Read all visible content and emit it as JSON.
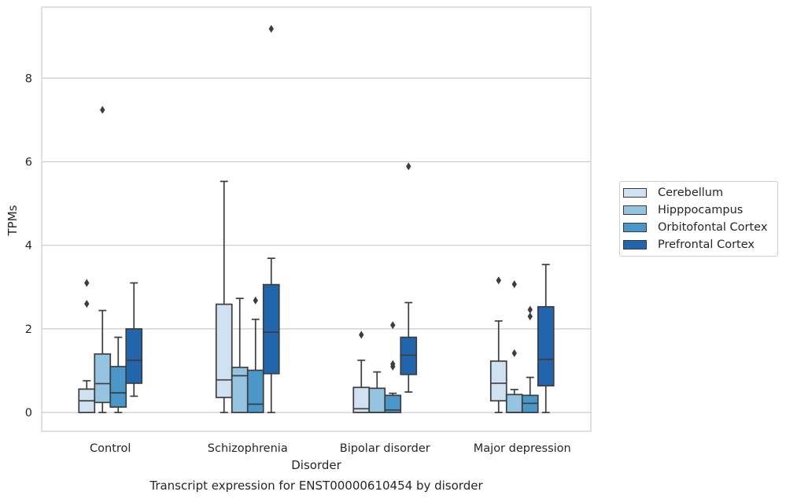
{
  "chart_data": {
    "type": "boxplot",
    "title": "Transcript expression for ENST00000610454 by disorder",
    "xlabel": "Disorder",
    "ylabel": "TPMs",
    "categories": [
      "Control",
      "Schizophrenia",
      "Bipolar disorder",
      "Major depression"
    ],
    "ylim": [
      -0.45,
      9.7
    ],
    "yticks": [
      0,
      2,
      4,
      6,
      8
    ],
    "grid": true,
    "legend_position": "right",
    "series": [
      {
        "name": "Cerebellum",
        "color": "#d0e1f2",
        "boxes": [
          {
            "whislo": 0,
            "q1": 0,
            "med": 0.28,
            "q3": 0.56,
            "whishi": 0.76,
            "fliers": [
              2.6,
              3.1
            ]
          },
          {
            "whislo": 0,
            "q1": 0.36,
            "med": 0.78,
            "q3": 2.59,
            "whishi": 5.53,
            "fliers": []
          },
          {
            "whislo": 0,
            "q1": 0,
            "med": 0.09,
            "q3": 0.6,
            "whishi": 1.25,
            "fliers": [
              1.86
            ]
          },
          {
            "whislo": 0,
            "q1": 0.28,
            "med": 0.7,
            "q3": 1.23,
            "whishi": 2.19,
            "fliers": [
              3.16
            ]
          }
        ]
      },
      {
        "name": "Hipppocampus",
        "color": "#94c4df",
        "boxes": [
          {
            "whislo": 0,
            "q1": 0.24,
            "med": 0.69,
            "q3": 1.4,
            "whishi": 2.44,
            "fliers": [
              7.24
            ]
          },
          {
            "whislo": 0,
            "q1": 0,
            "med": 0.88,
            "q3": 1.08,
            "whishi": 2.73,
            "fliers": []
          },
          {
            "whislo": 0,
            "q1": 0,
            "med": 0,
            "q3": 0.58,
            "whishi": 0.97,
            "fliers": []
          },
          {
            "whislo": 0,
            "q1": 0,
            "med": 0,
            "q3": 0.43,
            "whishi": 0.55,
            "fliers": [
              1.42,
              3.07
            ]
          }
        ]
      },
      {
        "name": "Orbitofontal Cortex",
        "color": "#4a98c9",
        "boxes": [
          {
            "whislo": 0,
            "q1": 0.13,
            "med": 0.47,
            "q3": 1.1,
            "whishi": 1.8,
            "fliers": []
          },
          {
            "whislo": 0,
            "q1": 0,
            "med": 0.2,
            "q3": 1.01,
            "whishi": 2.23,
            "fliers": [
              2.68
            ]
          },
          {
            "whislo": 0,
            "q1": 0,
            "med": 0.06,
            "q3": 0.41,
            "whishi": 0.46,
            "fliers": [
              1.1,
              1.16,
              2.09
            ]
          },
          {
            "whislo": 0,
            "q1": 0,
            "med": 0.22,
            "q3": 0.41,
            "whishi": 0.84,
            "fliers": [
              2.3,
              2.46
            ]
          }
        ]
      },
      {
        "name": "Prefrontal Cortex",
        "color": "#2166ac",
        "boxes": [
          {
            "whislo": 0.39,
            "q1": 0.7,
            "med": 1.25,
            "q3": 2.0,
            "whishi": 3.1,
            "fliers": []
          },
          {
            "whislo": 0,
            "q1": 0.93,
            "med": 1.92,
            "q3": 3.06,
            "whishi": 3.69,
            "fliers": [
              9.18
            ]
          },
          {
            "whislo": 0.49,
            "q1": 0.91,
            "med": 1.37,
            "q3": 1.8,
            "whishi": 2.63,
            "fliers": [
              5.89
            ]
          },
          {
            "whislo": 0,
            "q1": 0.64,
            "med": 1.27,
            "q3": 2.53,
            "whishi": 3.54,
            "fliers": []
          }
        ]
      }
    ]
  }
}
